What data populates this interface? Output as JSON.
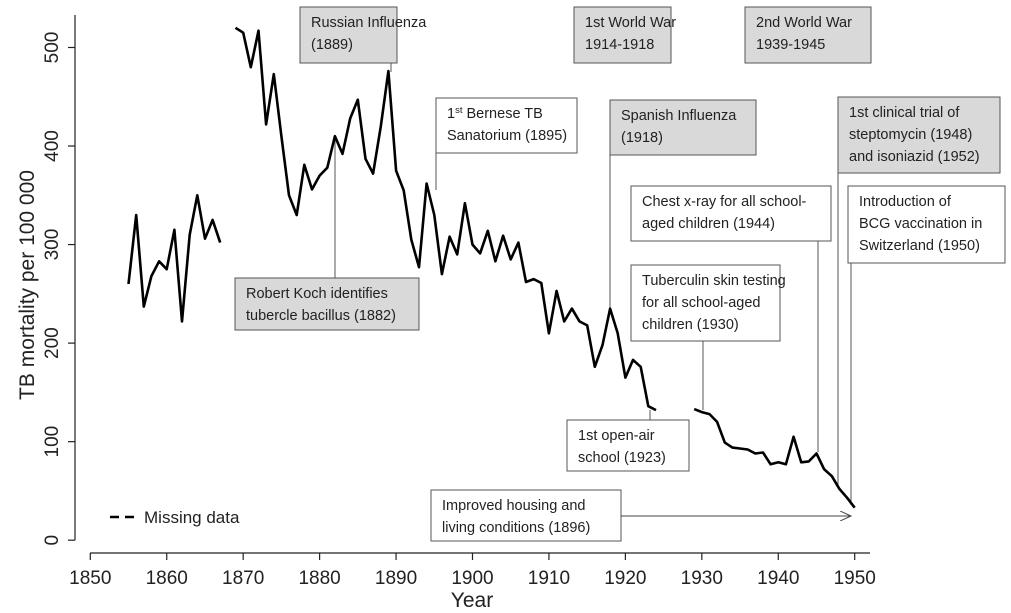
{
  "chart_data": {
    "type": "line",
    "x_label": "Year",
    "y_label": "TB mortality per 100 000",
    "xlim": [
      1848,
      1952
    ],
    "ylim": [
      -13,
      535
    ],
    "xticks": [
      1850,
      1860,
      1870,
      1880,
      1890,
      1900,
      1910,
      1920,
      1930,
      1940,
      1950
    ],
    "yticks": [
      0,
      100,
      200,
      300,
      400,
      500
    ],
    "x": [
      1855,
      1856,
      1857,
      1858,
      1859,
      1860,
      1861,
      1862,
      1863,
      1864,
      1865,
      1866,
      1867,
      1868,
      1869,
      1870,
      1871,
      1872,
      1873,
      1874,
      1875,
      1876,
      1877,
      1878,
      1879,
      1880,
      1881,
      1882,
      1883,
      1884,
      1885,
      1886,
      1887,
      1888,
      1889,
      1890,
      1891,
      1892,
      1893,
      1894,
      1895,
      1896,
      1897,
      1898,
      1899,
      1900,
      1901,
      1902,
      1903,
      1904,
      1905,
      1906,
      1907,
      1908,
      1909,
      1910,
      1911,
      1912,
      1913,
      1914,
      1915,
      1916,
      1917,
      1918,
      1919,
      1920,
      1921,
      1922,
      1923,
      1924,
      1925,
      1926,
      1927,
      1928,
      1929,
      1930,
      1931,
      1932,
      1933,
      1934,
      1935,
      1936,
      1937,
      1938,
      1939,
      1940,
      1941,
      1942,
      1943,
      1944,
      1945,
      1946,
      1947,
      1948,
      1949,
      1950
    ],
    "series": [
      {
        "color": "#000000",
        "dash": false,
        "values": [
          260,
          330,
          237,
          268,
          283,
          275,
          315,
          222,
          310,
          350,
          306,
          325,
          302,
          null,
          520,
          515,
          480,
          517,
          422,
          473,
          410,
          350,
          330,
          381,
          356,
          370,
          378,
          410,
          392,
          428,
          447,
          387,
          372,
          420,
          476,
          375,
          355,
          305,
          277,
          362,
          330,
          270,
          308,
          290,
          342,
          300,
          291,
          314,
          283,
          309,
          285,
          302,
          262,
          265,
          261,
          210,
          253,
          222,
          235,
          222,
          218,
          176,
          198,
          235,
          210,
          165,
          183,
          176,
          136,
          132,
          null,
          null,
          null,
          null,
          133,
          130,
          128,
          120,
          99,
          94,
          93,
          92,
          88,
          89,
          77,
          79,
          77,
          105,
          79,
          80,
          88,
          72,
          65,
          52,
          43,
          33
        ]
      },
      {
        "name": "Missing data",
        "color": "#000000",
        "dash": true,
        "values": [
          null,
          null,
          null,
          null,
          null,
          null,
          null,
          null,
          null,
          null,
          null,
          null,
          302,
          null,
          520,
          null,
          null,
          null,
          null,
          null,
          null,
          null,
          null,
          null,
          null,
          null,
          null,
          null,
          null,
          null,
          null,
          null,
          null,
          null,
          null,
          null,
          null,
          null,
          null,
          null,
          null,
          null,
          null,
          null,
          null,
          null,
          null,
          null,
          null,
          null,
          null,
          null,
          null,
          null,
          null,
          null,
          null,
          null,
          null,
          null,
          null,
          null,
          null,
          null,
          null,
          null,
          null,
          null,
          null,
          132,
          null,
          null,
          null,
          null,
          133,
          null,
          null,
          null,
          null,
          null,
          null,
          null,
          null,
          null,
          null,
          null,
          null,
          null,
          null,
          null,
          null,
          null,
          null,
          null,
          null,
          null
        ]
      }
    ],
    "annotations": [
      {
        "lines": [
          "Russian Influenza",
          "(1889)"
        ],
        "shaded": true
      },
      {
        "lines": [
          "1st World War",
          "1914-1918"
        ],
        "shaded": true
      },
      {
        "lines": [
          "2nd World War",
          "1939-1945"
        ],
        "shaded": true
      },
      {
        "lines": [
          [
            "1",
            "st",
            " Bernese TB"
          ],
          "Sanatorium (1895)"
        ],
        "shaded": false
      },
      {
        "lines": [
          "Spanish Influenza",
          "(1918)"
        ],
        "shaded": true
      },
      {
        "lines": [
          "1st clinical  trial  of",
          "steptomycin (1948)",
          "and isoniazid (1952)"
        ],
        "shaded": true
      },
      {
        "lines": [
          "Chest x-ray  for all school-",
          "aged children (1944)"
        ],
        "shaded": false
      },
      {
        "lines": [
          "Introduction of",
          "BCG vaccination in",
          "Switzerland (1950)"
        ],
        "shaded": false
      },
      {
        "lines": [
          "Tuberculin skin testing",
          "for all school-aged",
          "children (1930)"
        ],
        "shaded": false
      },
      {
        "lines": [
          "Robert Koch identifies",
          "tubercle bacillus (1882)"
        ],
        "shaded": true
      },
      {
        "lines": [
          "1st open-air",
          "school (1923)"
        ],
        "shaded": false
      },
      {
        "lines": [
          "Improved housing and",
          "living conditions (1896)"
        ],
        "shaded": false
      }
    ]
  }
}
